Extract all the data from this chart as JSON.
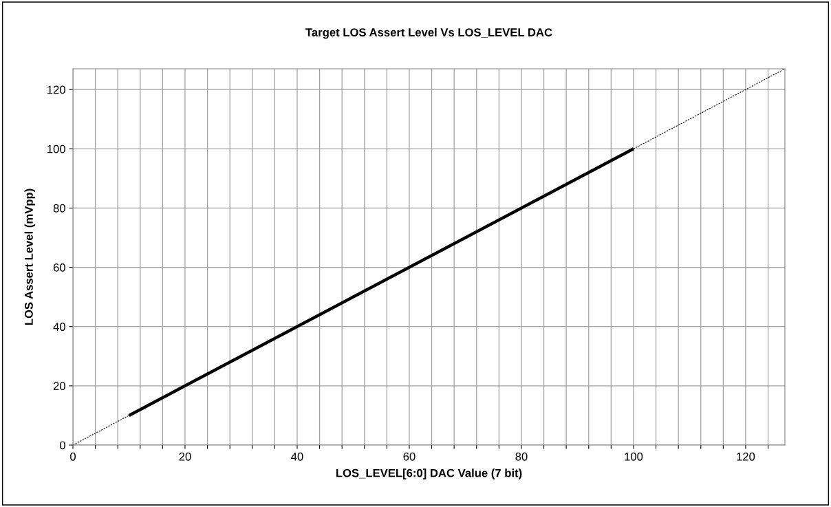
{
  "chart_data": {
    "type": "line",
    "title": "Target LOS Assert Level Vs LOS_LEVEL DAC",
    "xlabel": "LOS_LEVEL[6:0] DAC Value (7 bit)",
    "ylabel": "LOS Assert Level (mVpp)",
    "series": [
      {
        "color": "#000000",
        "x": [
          0,
          127
        ],
        "values": [
          0,
          127
        ],
        "line_style": "dotted"
      },
      {
        "color": "#000000",
        "x": [
          10,
          100
        ],
        "values": [
          10,
          100
        ],
        "line_style": "solid"
      }
    ],
    "xlim": [
      0,
      127
    ],
    "ylim": [
      0,
      127
    ],
    "xticks": [
      0,
      {
        "value": 4,
        "label": null
      },
      {
        "value": 8,
        "label": null
      },
      {
        "value": 12,
        "label": null
      },
      {
        "value": 16,
        "label": null
      },
      20,
      {
        "value": 24,
        "label": null
      },
      {
        "value": 28,
        "label": null
      },
      {
        "value": 32,
        "label": null
      },
      {
        "value": 36,
        "label": null
      },
      40,
      {
        "value": 44,
        "label": null
      },
      {
        "value": 48,
        "label": null
      },
      {
        "value": 52,
        "label": null
      },
      {
        "value": 56,
        "label": null
      },
      60,
      {
        "value": 64,
        "label": null
      },
      {
        "value": 68,
        "label": null
      },
      {
        "value": 72,
        "label": null
      },
      {
        "value": 76,
        "label": null
      },
      80,
      {
        "value": 84,
        "label": null
      },
      {
        "value": 88,
        "label": null
      },
      {
        "value": 92,
        "label": null
      },
      {
        "value": 96,
        "label": null
      },
      100,
      {
        "value": 104,
        "label": null
      },
      {
        "value": 108,
        "label": null
      },
      {
        "value": 112,
        "label": null
      },
      {
        "value": 116,
        "label": null
      },
      120,
      {
        "value": 124,
        "label": null
      }
    ],
    "yticks": [
      0,
      20,
      40,
      60,
      80,
      100,
      120
    ],
    "grid": true,
    "marker": "none",
    "legend": false
  }
}
